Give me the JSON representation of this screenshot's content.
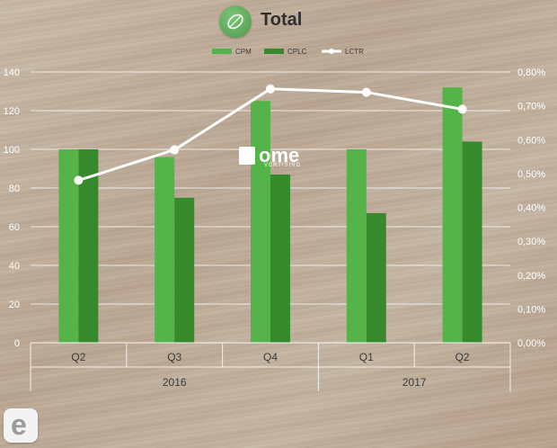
{
  "header": {
    "title": "Total",
    "icon": "leaf-icon"
  },
  "watermark": {
    "text": "ome",
    "sub": "VERTISING"
  },
  "corner_logo": {
    "letter": "e"
  },
  "colors": {
    "cpm": "#54b44a",
    "cplc": "#368a2c",
    "lctr": "#ffffff"
  },
  "chart_data": {
    "type": "bar",
    "title": "Total",
    "categories": [
      "Q2",
      "Q3",
      "Q4",
      "Q1",
      "Q2"
    ],
    "category_groups": [
      {
        "label": "2016",
        "span": 3
      },
      {
        "label": "2017",
        "span": 2
      }
    ],
    "series": [
      {
        "name": "CPM",
        "type": "bar",
        "axis": "left",
        "values": [
          100,
          96,
          125,
          100,
          132
        ]
      },
      {
        "name": "CPLC",
        "type": "bar",
        "axis": "left",
        "values": [
          100,
          75,
          87,
          67,
          104
        ]
      },
      {
        "name": "LCTR",
        "type": "line",
        "axis": "right",
        "values": [
          0.0048,
          0.0057,
          0.0075,
          0.0074,
          0.0069
        ]
      }
    ],
    "y_left": {
      "min": 0,
      "max": 140,
      "ticks": [
        "0",
        "20",
        "40",
        "60",
        "80",
        "100",
        "120",
        "140"
      ]
    },
    "y_right": {
      "min": 0,
      "max": 0.008,
      "ticks": [
        "0,00%",
        "0,10%",
        "0,20%",
        "0,30%",
        "0,40%",
        "0,50%",
        "0,60%",
        "0,70%",
        "0,80%"
      ]
    },
    "grid": true,
    "legend": "top-center"
  }
}
